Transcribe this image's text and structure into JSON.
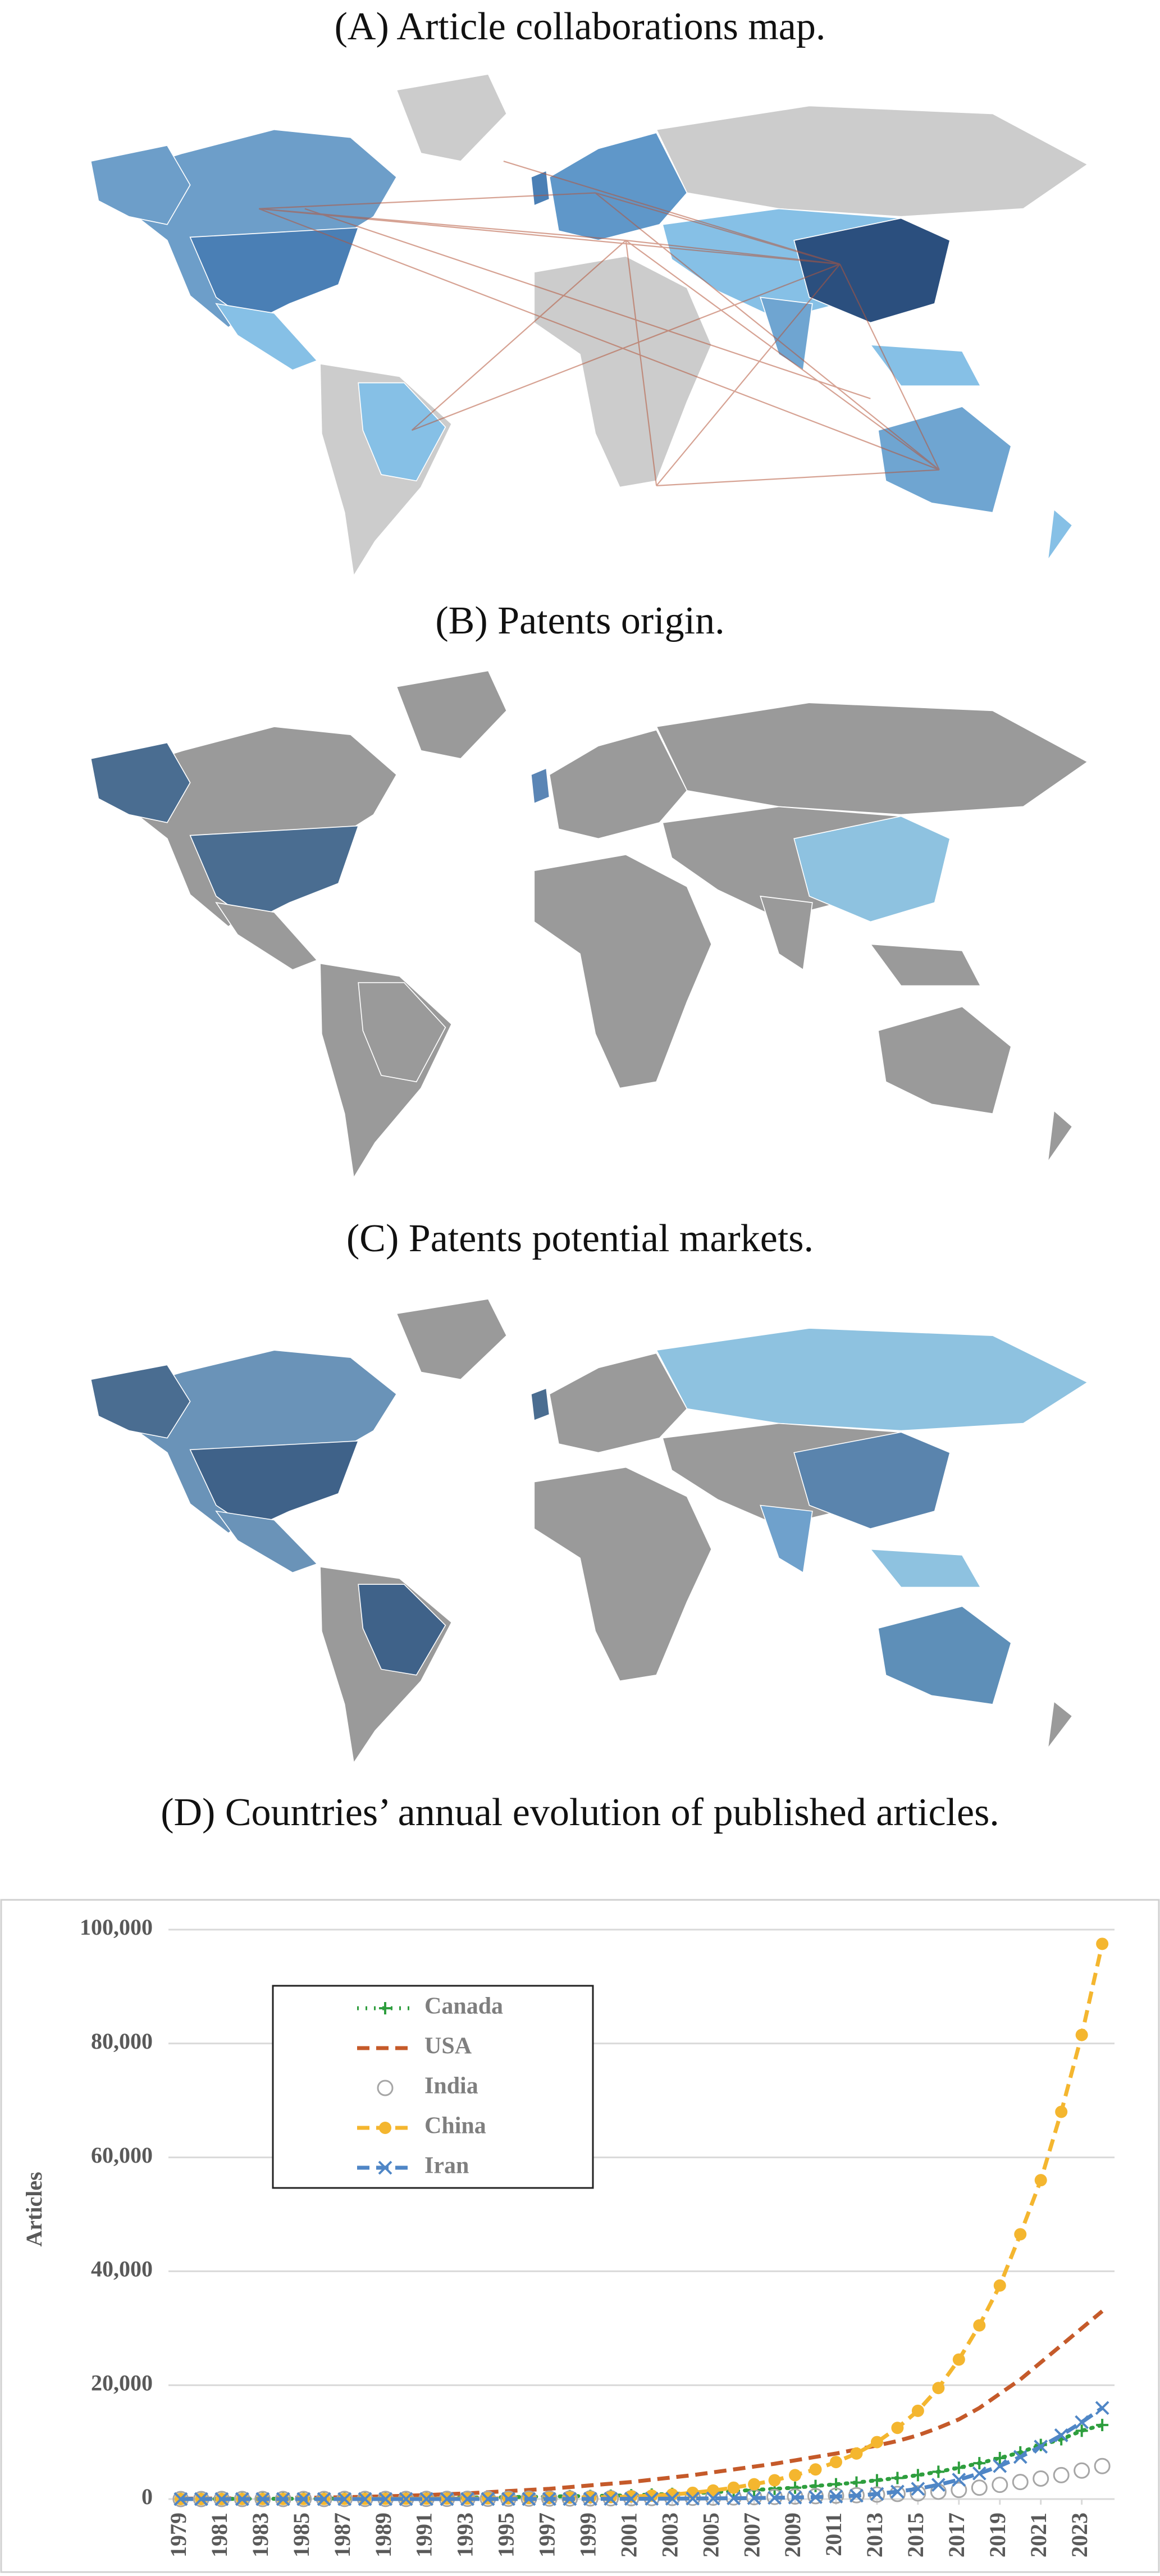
{
  "panels": [
    {
      "title": "(A) Article collaborations map."
    },
    {
      "title": "(B) Patents origin."
    },
    {
      "title": "(C) Patents potential markets."
    }
  ],
  "chart_data": {
    "type": "line",
    "title": "(D) Countries’ annual evolution of published articles.",
    "y_label": "Articles",
    "x": [
      1979,
      1980,
      1981,
      1982,
      1983,
      1984,
      1985,
      1986,
      1987,
      1988,
      1989,
      1990,
      1991,
      1992,
      1993,
      1994,
      1995,
      1996,
      1997,
      1998,
      1999,
      2000,
      2001,
      2002,
      2003,
      2004,
      2005,
      2006,
      2007,
      2008,
      2009,
      2010,
      2011,
      2012,
      2013,
      2014,
      2015,
      2016,
      2017,
      2018,
      2019,
      2020,
      2021,
      2022,
      2023,
      2024
    ],
    "xlim": [
      1978.4,
      2024.6
    ],
    "xticks": [
      1979,
      1981,
      1983,
      1985,
      1987,
      1989,
      1991,
      1993,
      1995,
      1997,
      1999,
      2001,
      2003,
      2005,
      2007,
      2009,
      2011,
      2013,
      2015,
      2017,
      2019,
      2021,
      2023
    ],
    "ylim": [
      0,
      100000
    ],
    "yticks": [
      0,
      {
        "value": 20000,
        "label": "20,000"
      },
      {
        "value": 40000,
        "label": "40,000"
      },
      {
        "value": 60000,
        "label": "60,000"
      },
      {
        "value": 80000,
        "label": "80,000"
      },
      {
        "value": 100000,
        "label": "100,000"
      }
    ],
    "grid": true,
    "legend": "upper left",
    "series": [
      {
        "name": "Canada",
        "color": "#2e9e3e",
        "line_style": "dotted",
        "marker": "plus",
        "values": [
          20,
          25,
          30,
          38,
          45,
          55,
          65,
          78,
          92,
          110,
          130,
          155,
          180,
          210,
          250,
          290,
          340,
          390,
          440,
          500,
          540,
          580,
          670,
          780,
          900,
          1050,
          1200,
          1400,
          1600,
          1800,
          2000,
          2300,
          2600,
          2900,
          3300,
          3700,
          4200,
          4800,
          5500,
          6300,
          7200,
          8200,
          9500,
          10500,
          12000,
          13000
        ]
      },
      {
        "name": "USA",
        "color": "#c55a2a",
        "line_style": "dashed",
        "marker": "none",
        "values": [
          60,
          80,
          100,
          120,
          150,
          180,
          220,
          270,
          330,
          400,
          480,
          580,
          700,
          850,
          1000,
          1200,
          1400,
          1600,
          1800,
          2100,
          2400,
          2700,
          3000,
          3400,
          3800,
          4200,
          4700,
          5200,
          5700,
          6200,
          6800,
          7400,
          8000,
          8700,
          9400,
          10200,
          11200,
          12500,
          14000,
          16000,
          18500,
          21000,
          24000,
          27000,
          30000,
          33000
        ]
      },
      {
        "name": "India",
        "color": "#a6a6a6",
        "line_style": "none",
        "marker": "open-circle",
        "values": [
          5,
          6,
          7,
          8,
          10,
          12,
          14,
          16,
          19,
          22,
          26,
          30,
          35,
          40,
          47,
          55,
          65,
          75,
          88,
          100,
          115,
          130,
          150,
          170,
          195,
          220,
          250,
          290,
          330,
          380,
          440,
          510,
          590,
          680,
          790,
          900,
          1000,
          1300,
          1600,
          2000,
          2500,
          3000,
          3600,
          4200,
          5000,
          5800
        ]
      },
      {
        "name": "China",
        "color": "#f4b62f",
        "line_style": "dashed",
        "marker": "circle",
        "values": [
          5,
          6,
          8,
          10,
          12,
          15,
          18,
          22,
          27,
          33,
          40,
          50,
          60,
          75,
          90,
          110,
          135,
          165,
          200,
          250,
          300,
          330,
          450,
          600,
          800,
          1100,
          1500,
          2000,
          2600,
          3300,
          4200,
          5200,
          6500,
          8000,
          10000,
          12500,
          15500,
          19500,
          24500,
          30500,
          37500,
          46500,
          56000,
          68000,
          81500,
          97500
        ]
      },
      {
        "name": "Iran",
        "color": "#4f86c6",
        "line_style": "dashed",
        "marker": "x",
        "values": [
          1,
          1,
          1,
          1,
          1,
          1,
          2,
          2,
          2,
          3,
          3,
          4,
          5,
          6,
          7,
          9,
          11,
          14,
          18,
          22,
          28,
          35,
          44,
          55,
          70,
          90,
          110,
          140,
          175,
          220,
          280,
          350,
          450,
          600,
          900,
          1300,
          1800,
          2500,
          3400,
          4500,
          5800,
          7400,
          9200,
          11200,
          13500,
          16000
        ]
      }
    ]
  }
}
